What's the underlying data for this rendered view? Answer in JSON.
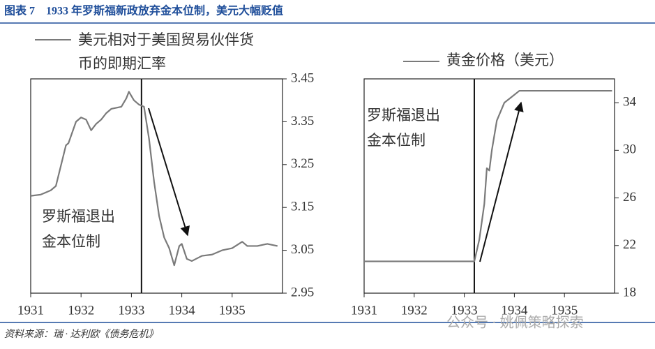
{
  "header": {
    "title": "图表 7　1933 年罗斯福新政放弃金本位制，美元大幅贬值"
  },
  "chart_data": [
    {
      "type": "line",
      "series": [
        {
          "name": "美元相对于美国贸易伙伴货币的即期汇率",
          "color": "#7a7a7a",
          "x": [
            1931.0,
            1931.2,
            1931.3,
            1931.4,
            1931.5,
            1931.7,
            1931.75,
            1931.9,
            1932.0,
            1932.1,
            1932.2,
            1932.3,
            1932.4,
            1932.5,
            1932.6,
            1932.8,
            1932.9,
            1932.95,
            1933.05,
            1933.15,
            1933.25,
            1933.35,
            1933.45,
            1933.55,
            1933.65,
            1933.75,
            1933.85,
            1933.95,
            1934.0,
            1934.1,
            1934.2,
            1934.4,
            1934.6,
            1934.8,
            1935.0,
            1935.2,
            1935.3,
            1935.5,
            1935.7,
            1935.9
          ],
          "values": [
            3.177,
            3.18,
            3.185,
            3.19,
            3.2,
            3.295,
            3.3,
            3.35,
            3.36,
            3.355,
            3.33,
            3.345,
            3.355,
            3.37,
            3.38,
            3.385,
            3.405,
            3.42,
            3.4,
            3.39,
            3.385,
            3.31,
            3.21,
            3.13,
            3.08,
            3.055,
            3.015,
            3.06,
            3.065,
            3.03,
            3.025,
            3.037,
            3.04,
            3.05,
            3.055,
            3.07,
            3.06,
            3.06,
            3.065,
            3.06
          ]
        }
      ],
      "xlim": [
        1931,
        1936
      ],
      "xticks": [
        1931,
        1932,
        1933,
        1934,
        1935
      ],
      "ylim": [
        2.95,
        3.45
      ],
      "yticks": [
        2.95,
        3.05,
        3.15,
        3.25,
        3.35,
        3.45
      ],
      "event_x": 1933.2,
      "annotation": [
        "罗斯福退出",
        "金本位制"
      ]
    },
    {
      "type": "line",
      "series": [
        {
          "name": "黄金价格（美元）",
          "color": "#7a7a7a",
          "x": [
            1931.0,
            1933.2,
            1933.3,
            1933.4,
            1933.45,
            1933.5,
            1933.55,
            1933.65,
            1933.8,
            1933.95,
            1934.1,
            1935.95
          ],
          "values": [
            20.67,
            20.67,
            22.5,
            25.5,
            28.5,
            28.3,
            30,
            32.5,
            34,
            34.5,
            35,
            35
          ]
        }
      ],
      "xlim": [
        1931,
        1936
      ],
      "xticks": [
        1931,
        1932,
        1933,
        1934,
        1935
      ],
      "ylim": [
        18,
        36
      ],
      "yticks": [
        18,
        22,
        26,
        30,
        34
      ],
      "event_x": 1933.2,
      "annotation": [
        "罗斯福退出",
        "金本位制"
      ]
    }
  ],
  "footer": {
    "source": "资料来源：瑞 · 达利欧《债务危机》",
    "watermark": "公众号 · 姚佩策略探索"
  }
}
